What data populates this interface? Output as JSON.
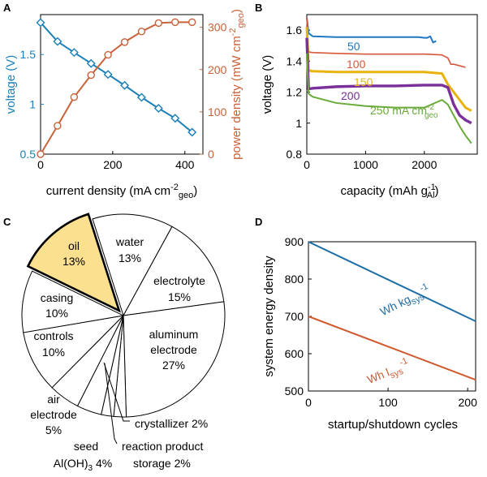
{
  "panels": {
    "a": "A",
    "b": "B",
    "c": "C",
    "d": "D"
  },
  "colors": {
    "blue": "#1a7fb8",
    "orange": "#c8623a",
    "c50": "#1f77c4",
    "c100": "#d5573b",
    "c150": "#e8b20f",
    "c200": "#7b2f9a",
    "c250": "#6aaa3a",
    "oil": "#fbe08f",
    "dBlue": "#1f6fa6",
    "dOrange": "#cf5a2e"
  },
  "chart_data": [
    {
      "type": "line",
      "xlabel": "current density (mA cm",
      "xlabel_sup": "-2",
      "xlabel_sub": "geo",
      "xlabel_end": ")",
      "ylabel": "voltage (V)",
      "y2label": "power density (mW cm",
      "y2label_sup": "-2",
      "y2label_sub": "geo",
      "y2label_end": ")",
      "xlim": [
        0,
        450
      ],
      "ylim": [
        0.5,
        1.9
      ],
      "y2lim": [
        0,
        330
      ],
      "xticks": [
        "0",
        "200",
        "400"
      ],
      "yticks": [
        "0.5",
        "1",
        "1.5"
      ],
      "y2ticks": [
        "0",
        "100",
        "200",
        "300"
      ],
      "series": [
        {
          "x": [
            0,
            47,
            93,
            140,
            187,
            233,
            280,
            327,
            373,
            420
          ],
          "values": [
            1.82,
            1.63,
            1.52,
            1.41,
            1.3,
            1.19,
            1.07,
            0.96,
            0.86,
            0.72
          ]
        },
        {
          "x": [
            0,
            47,
            93,
            140,
            187,
            233,
            280,
            327,
            373,
            420
          ],
          "values": [
            0,
            67,
            135,
            187,
            235,
            265,
            290,
            310,
            312,
            312
          ]
        }
      ]
    },
    {
      "type": "line",
      "xlabel": "capacity (mAh g",
      "xlabel_sup": "-1",
      "xlabel_sub": "Al",
      "xlabel_end": ")",
      "ylabel": "voltage (V)",
      "xlim": [
        0,
        2900
      ],
      "ylim": [
        0.8,
        1.7
      ],
      "xticks": [
        "0",
        "1000",
        "2000"
      ],
      "yticks": [
        "0.8",
        "1",
        "1.2",
        "1.4",
        "1.6"
      ],
      "series": [
        {
          "name": "50",
          "x": [
            0,
            30,
            100,
            500,
            1000,
            1500,
            1900,
            2000,
            2050,
            2100,
            2150,
            2200
          ],
          "values": [
            1.68,
            1.58,
            1.56,
            1.555,
            1.555,
            1.555,
            1.555,
            1.55,
            1.55,
            1.56,
            1.52,
            1.53
          ]
        },
        {
          "name": "100",
          "x": [
            0,
            30,
            100,
            500,
            1000,
            1500,
            2000,
            2300,
            2400,
            2450,
            2500,
            2600,
            2700
          ],
          "values": [
            1.68,
            1.46,
            1.455,
            1.45,
            1.445,
            1.445,
            1.445,
            1.44,
            1.42,
            1.38,
            1.38,
            1.37,
            1.36
          ]
        },
        {
          "name": "150",
          "x": [
            0,
            30,
            100,
            500,
            1000,
            1500,
            2000,
            2300,
            2400,
            2500,
            2600,
            2700,
            2800
          ],
          "values": [
            1.62,
            1.34,
            1.335,
            1.33,
            1.33,
            1.33,
            1.33,
            1.32,
            1.25,
            1.2,
            1.15,
            1.1,
            1.08
          ]
        },
        {
          "name": "200",
          "x": [
            0,
            30,
            100,
            500,
            1000,
            1500,
            2000,
            2300,
            2400,
            2500,
            2600,
            2700,
            2800
          ],
          "values": [
            1.55,
            1.22,
            1.225,
            1.235,
            1.24,
            1.24,
            1.245,
            1.245,
            1.23,
            1.12,
            1.05,
            1.02,
            1.0
          ]
        },
        {
          "name": "250 mA cm",
          "name_sup": "-2",
          "name_sub": "geo",
          "x": [
            0,
            30,
            100,
            500,
            1000,
            1500,
            2000,
            2300,
            2400,
            2500,
            2600,
            2700,
            2800
          ],
          "values": [
            1.45,
            1.19,
            1.17,
            1.13,
            1.11,
            1.1,
            1.1,
            1.15,
            1.12,
            1.05,
            0.98,
            0.92,
            0.87
          ]
        }
      ]
    },
    {
      "type": "pie",
      "slices": [
        {
          "label": "oil",
          "pct": "13%",
          "value": 13,
          "highlight": true
        },
        {
          "label": "water",
          "pct": "13%",
          "value": 13
        },
        {
          "label": "electrolyte",
          "pct": "15%",
          "value": 15
        },
        {
          "label": "aluminum",
          "label2": "electrode",
          "pct": "27%",
          "value": 27
        },
        {
          "label": "crystallizer 2%",
          "value": 2
        },
        {
          "label": "reaction product",
          "label2": "storage 2%",
          "value": 2
        },
        {
          "label": "seed",
          "label2": "Al(OH)",
          "label2_sub": "3",
          "label2_end": " 4%",
          "value": 4
        },
        {
          "label": "air",
          "label2": "electrode",
          "pct": "5%",
          "value": 5
        },
        {
          "label": "controls",
          "pct": "10%",
          "value": 10
        },
        {
          "label": "casing",
          "pct": "10%",
          "value": 10
        }
      ]
    },
    {
      "type": "line",
      "xlabel": "startup/shutdown cycles",
      "ylabel": "system energy density",
      "xlim": [
        0,
        210
      ],
      "ylim": [
        500,
        900
      ],
      "xticks": [
        "0",
        "100",
        "200"
      ],
      "yticks": [
        "500",
        "600",
        "700",
        "800",
        "900"
      ],
      "series": [
        {
          "name": "Wh kg",
          "name_sub": "sys",
          "name_sup": "-1",
          "x": [
            0,
            210
          ],
          "values": [
            900,
            687
          ]
        },
        {
          "name": "Wh l",
          "name_sub": "sys",
          "name_sup": "-1",
          "x": [
            0,
            210
          ],
          "values": [
            700,
            530
          ]
        }
      ]
    }
  ]
}
